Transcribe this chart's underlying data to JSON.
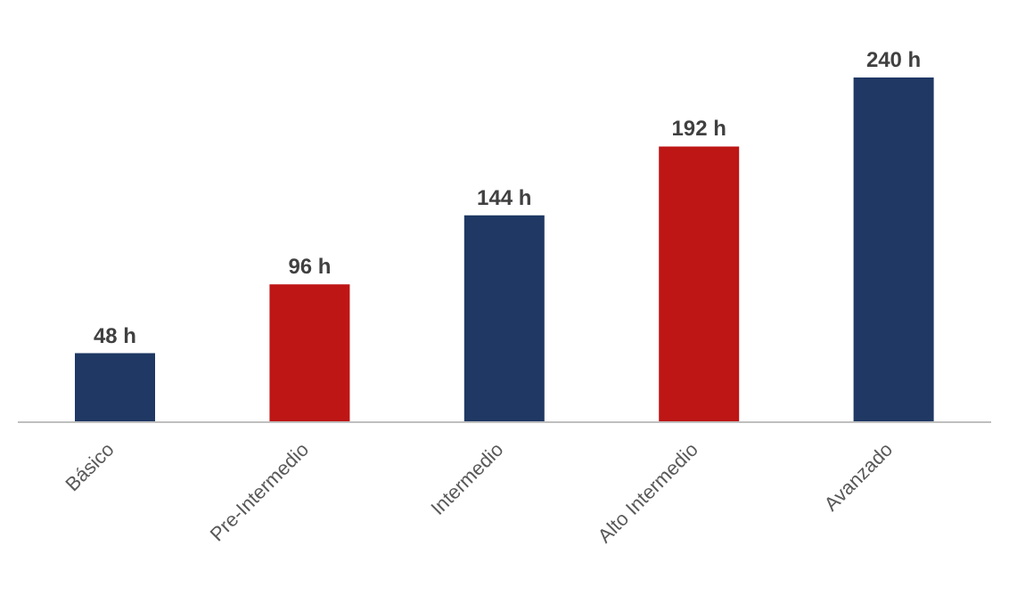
{
  "chart_data": {
    "type": "bar",
    "categories": [
      "Básico",
      "Pre-Intermedio",
      "Intermedio",
      "Alto Intermedio",
      "Avanzado"
    ],
    "values": [
      48,
      96,
      144,
      192,
      240
    ],
    "colors": [
      "#1f3864",
      "#be1515",
      "#1f3864",
      "#be1515",
      "#1f3864"
    ],
    "value_labels": [
      "48 h",
      "96 h",
      "144 h",
      "192 h",
      "240 h"
    ],
    "grid": false,
    "legend": false
  }
}
